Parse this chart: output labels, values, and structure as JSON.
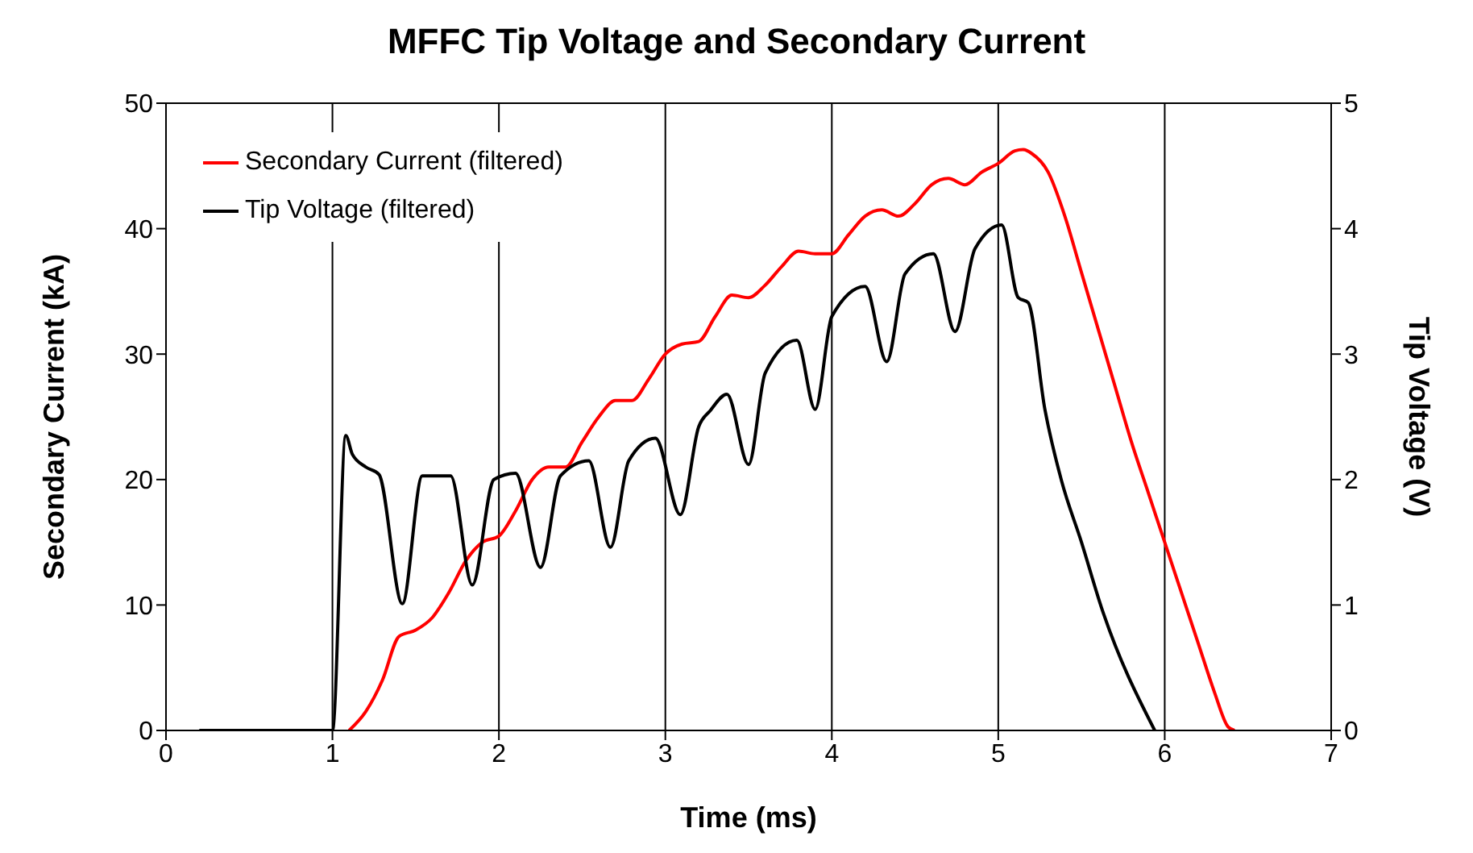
{
  "chart_data": {
    "type": "line",
    "title": "MFFC Tip Voltage and Secondary Current",
    "xlabel": "Time (ms)",
    "ylabel": "Secondary Current (kA)",
    "y2label": "Tip Voltage (V)",
    "xlim": [
      0,
      7
    ],
    "xticks": [
      0,
      1,
      2,
      3,
      4,
      5,
      6,
      7
    ],
    "ylim": [
      0,
      50
    ],
    "yticks": [
      0,
      10,
      20,
      30,
      40,
      50
    ],
    "y2lim": [
      0,
      5
    ],
    "y2ticks": [
      0,
      1,
      2,
      3,
      4,
      5
    ],
    "grid": true,
    "legend": "top left",
    "marker": "none",
    "line_style": "solid",
    "series": [
      {
        "name": "Secondary Current (filtered)",
        "color": "#ff0000",
        "x": [
          1.1,
          1.2,
          1.3,
          1.4,
          1.5,
          1.6,
          1.7,
          1.8,
          1.9,
          2.0,
          2.1,
          2.2,
          2.3,
          2.4,
          2.5,
          2.6,
          2.7,
          2.8,
          2.9,
          3.0,
          3.1,
          3.2,
          3.3,
          3.4,
          3.5,
          3.6,
          3.7,
          3.8,
          3.9,
          4.0,
          4.1,
          4.2,
          4.3,
          4.4,
          4.5,
          4.6,
          4.7,
          4.8,
          4.9,
          5.0,
          5.1,
          5.15,
          5.2,
          5.3,
          5.4,
          5.5,
          5.6,
          5.7,
          5.8,
          5.9,
          6.0,
          6.1,
          6.2,
          6.3,
          6.38,
          6.42
        ],
        "values": [
          0,
          1.5,
          4,
          7.5,
          8,
          9,
          11,
          13.5,
          15,
          15.5,
          17.5,
          20,
          21,
          21,
          23,
          25,
          26.3,
          26.3,
          28,
          30,
          30.8,
          31,
          33,
          34.7,
          34.5,
          35.5,
          37,
          38.2,
          38,
          38,
          39.5,
          41,
          41.5,
          41,
          42,
          43.5,
          44,
          43.5,
          44.5,
          45.2,
          46.2,
          46.3,
          46,
          44.5,
          41,
          36.5,
          32,
          27.5,
          23,
          19,
          15,
          11,
          7,
          3,
          0.3,
          0
        ]
      },
      {
        "name": "Tip Voltage (filtered)",
        "color": "#000000",
        "axis": "y2",
        "x": [
          0.2,
          0.6,
          1.0,
          1.08,
          1.12,
          1.2,
          1.28,
          1.42,
          1.54,
          1.71,
          1.84,
          1.97,
          2.1,
          2.25,
          2.37,
          2.54,
          2.67,
          2.78,
          2.94,
          3.09,
          3.2,
          3.27,
          3.37,
          3.5,
          3.6,
          3.79,
          3.9,
          4.0,
          4.2,
          4.33,
          4.44,
          4.61,
          4.74,
          4.86,
          5.02,
          5.12,
          5.18,
          5.28,
          5.38,
          5.5,
          5.62,
          5.94
        ],
        "values": [
          0,
          0,
          0,
          2.35,
          2.2,
          2.1,
          2.04,
          1.01,
          2.03,
          2.03,
          1.16,
          2.0,
          2.05,
          1.3,
          2.03,
          2.15,
          1.46,
          2.15,
          2.33,
          1.72,
          2.42,
          2.55,
          2.68,
          2.12,
          2.85,
          3.11,
          2.56,
          3.3,
          3.54,
          2.94,
          3.64,
          3.8,
          3.18,
          3.84,
          4.03,
          3.45,
          3.41,
          2.56,
          1.99,
          1.5,
          0.98,
          0
        ]
      }
    ]
  }
}
